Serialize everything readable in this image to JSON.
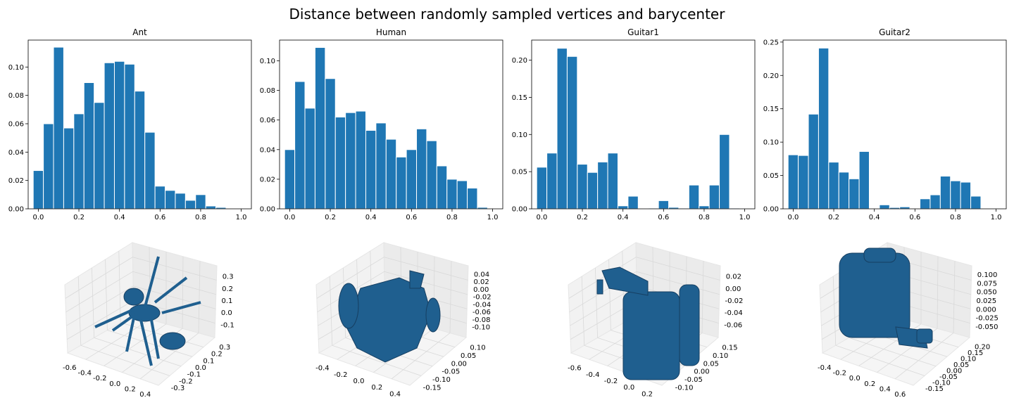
{
  "title": "Distance between randomly sampled vertices and barycenter",
  "colors": {
    "bar": "#1f77b4",
    "mesh": "#1f5f8f",
    "mesh_dark": "#163f62",
    "pane": "#f2f2f2",
    "grid": "#d9d9d9"
  },
  "chart_data": [
    {
      "type": "bar",
      "title": "Ant",
      "xlim": [
        -0.05,
        1.05
      ],
      "ylim": [
        0,
        0.119
      ],
      "xticks": [
        0.0,
        0.2,
        0.4,
        0.6,
        0.8,
        1.0
      ],
      "xtick_labels": [
        "0.0",
        "0.2",
        "0.4",
        "0.6",
        "0.8",
        "1.0"
      ],
      "yticks": [
        0.0,
        0.02,
        0.04,
        0.06,
        0.08,
        0.1
      ],
      "ytick_labels": [
        "0.00",
        "0.02",
        "0.04",
        "0.06",
        "0.08",
        "0.10"
      ],
      "bin_start": -0.025,
      "bin_width": 0.05,
      "values": [
        0.027,
        0.06,
        0.114,
        0.057,
        0.067,
        0.089,
        0.075,
        0.103,
        0.104,
        0.102,
        0.083,
        0.054,
        0.016,
        0.013,
        0.011,
        0.006,
        0.01,
        0.002,
        0.001
      ]
    },
    {
      "type": "bar",
      "title": "Human",
      "xlim": [
        -0.05,
        1.05
      ],
      "ylim": [
        0,
        0.114
      ],
      "xticks": [
        0.0,
        0.2,
        0.4,
        0.6,
        0.8,
        1.0
      ],
      "xtick_labels": [
        "0.0",
        "0.2",
        "0.4",
        "0.6",
        "0.8",
        "1.0"
      ],
      "yticks": [
        0.0,
        0.02,
        0.04,
        0.06,
        0.08,
        0.1
      ],
      "ytick_labels": [
        "0.00",
        "0.02",
        "0.04",
        "0.06",
        "0.08",
        "0.10"
      ],
      "bin_start": -0.025,
      "bin_width": 0.05,
      "values": [
        0.04,
        0.086,
        0.068,
        0.109,
        0.088,
        0.062,
        0.065,
        0.066,
        0.053,
        0.058,
        0.047,
        0.035,
        0.04,
        0.054,
        0.046,
        0.029,
        0.02,
        0.019,
        0.014,
        0.001
      ]
    },
    {
      "type": "bar",
      "title": "Guitar1",
      "xlim": [
        -0.05,
        1.05
      ],
      "ylim": [
        0,
        0.227
      ],
      "xticks": [
        0.0,
        0.2,
        0.4,
        0.6,
        0.8,
        1.0
      ],
      "xtick_labels": [
        "0.0",
        "0.2",
        "0.4",
        "0.6",
        "0.8",
        "1.0"
      ],
      "yticks": [
        0.0,
        0.05,
        0.1,
        0.15,
        0.2
      ],
      "ytick_labels": [
        "0.00",
        "0.05",
        "0.10",
        "0.15",
        "0.20"
      ],
      "bin_start": -0.025,
      "bin_width": 0.05,
      "values": [
        0.056,
        0.075,
        0.216,
        0.205,
        0.06,
        0.049,
        0.063,
        0.075,
        0.004,
        0.017,
        0.0,
        0.001,
        0.011,
        0.002,
        0.001,
        0.032,
        0.004,
        0.032,
        0.1,
        0.001
      ]
    },
    {
      "type": "bar",
      "title": "Guitar2",
      "xlim": [
        -0.05,
        1.05
      ],
      "ylim": [
        0,
        0.253
      ],
      "xticks": [
        0.0,
        0.2,
        0.4,
        0.6,
        0.8,
        1.0
      ],
      "xtick_labels": [
        "0.0",
        "0.2",
        "0.4",
        "0.6",
        "0.8",
        "1.0"
      ],
      "yticks": [
        0.0,
        0.05,
        0.1,
        0.15,
        0.2,
        0.25
      ],
      "ytick_labels": [
        "0.00",
        "0.05",
        "0.10",
        "0.15",
        "0.20",
        "0.25"
      ],
      "bin_start": -0.025,
      "bin_width": 0.05,
      "values": [
        0.081,
        0.08,
        0.142,
        0.241,
        0.07,
        0.055,
        0.045,
        0.086,
        0.001,
        0.006,
        0.002,
        0.003,
        0.001,
        0.015,
        0.021,
        0.049,
        0.042,
        0.04,
        0.019,
        0.001
      ]
    }
  ],
  "mesh_plots": [
    {
      "name": "Ant",
      "x_ticks": [
        "-0.6",
        "-0.4",
        "-0.2",
        "0.0",
        "0.2",
        "0.4"
      ],
      "y_ticks": [
        "-0.3",
        "-0.2",
        "-0.1",
        "0.0",
        "0.1",
        "0.2",
        "0.3"
      ],
      "z_ticks": [
        "0.3",
        "0.2",
        "0.1",
        "0.0",
        "-0.1"
      ]
    },
    {
      "name": "Human",
      "x_ticks": [
        "-0.4",
        "-0.2",
        "0.0",
        "0.2",
        "0.4"
      ],
      "y_ticks": [
        "-0.15",
        "-0.10",
        "-0.05",
        "0.00",
        "0.05",
        "0.10"
      ],
      "z_ticks": [
        "0.04",
        "0.02",
        "0.00",
        "-0.02",
        "-0.04",
        "-0.06",
        "-0.08",
        "-0.10"
      ]
    },
    {
      "name": "Guitar1",
      "x_ticks": [
        "-0.6",
        "-0.4",
        "-0.2",
        "0.0",
        "0.2"
      ],
      "y_ticks": [
        "-0.10",
        "-0.05",
        "0.00",
        "0.05",
        "0.10",
        "0.15"
      ],
      "z_ticks": [
        "0.02",
        "0.00",
        "-0.02",
        "-0.04",
        "-0.06"
      ]
    },
    {
      "name": "Guitar2",
      "x_ticks": [
        "-0.4",
        "-0.2",
        "0.0",
        "0.2",
        "0.4",
        "0.6"
      ],
      "y_ticks": [
        "-0.15",
        "-0.10",
        "-0.05",
        "0.00",
        "0.05",
        "0.10",
        "0.15",
        "0.20"
      ],
      "z_ticks": [
        "0.100",
        "0.075",
        "0.050",
        "0.025",
        "0.000",
        "-0.025",
        "-0.050"
      ]
    }
  ]
}
